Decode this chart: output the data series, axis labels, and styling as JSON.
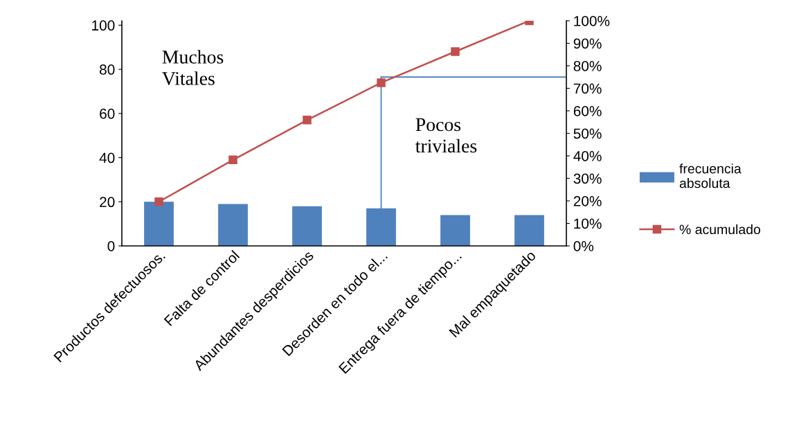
{
  "chart_data": {
    "type": "bar",
    "categories": [
      "Productos defectuosos.",
      "Falta de control",
      "Abundantes desperdicios",
      "Desorden en todo el...",
      "Entrega fuera de tiempo...",
      "Mal empaquetado"
    ],
    "series": [
      {
        "name": "frecuencia absoluta",
        "color": "#4f81bd",
        "values": [
          20,
          19,
          18,
          17,
          14,
          14
        ]
      },
      {
        "name": "% acumulado",
        "type": "line",
        "axis": "y2",
        "color": "#c0504d",
        "marker": "square",
        "values": [
          19.6,
          38.2,
          55.9,
          72.5,
          86.3,
          100
        ]
      }
    ],
    "ylim": [
      0,
      102
    ],
    "yticks": [
      0,
      20,
      40,
      60,
      80,
      100
    ],
    "y2lim": [
      0,
      100
    ],
    "y2ticks": [
      {
        "value": 0,
        "label": "0%"
      },
      {
        "value": 10,
        "label": "10%"
      },
      {
        "value": 20,
        "label": "20%"
      },
      {
        "value": 30,
        "label": "30%"
      },
      {
        "value": 40,
        "label": "40%"
      },
      {
        "value": 50,
        "label": "50%"
      },
      {
        "value": 60,
        "label": "60%"
      },
      {
        "value": 70,
        "label": "70%"
      },
      {
        "value": 80,
        "label": "80%"
      },
      {
        "value": 90,
        "label": "90%"
      },
      {
        "value": 100,
        "label": "100%"
      }
    ],
    "annotations": [
      "Muchos\nVitales",
      "Pocos\ntriviales"
    ],
    "ref_lines": [
      {
        "axis": "x",
        "value": "Desorden en todo el...",
        "color": "#4f81bd"
      },
      {
        "axis": "y2",
        "value": 75,
        "color": "#4f81bd"
      }
    ],
    "grid": false,
    "legend": "right"
  }
}
